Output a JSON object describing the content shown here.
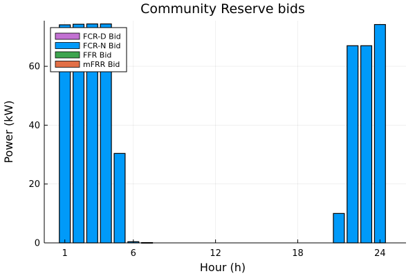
{
  "chart_data": {
    "type": "bar",
    "title": "Community Reserve bids",
    "xlabel": "Hour (h)",
    "ylabel": "Power (kW)",
    "x": [
      1,
      2,
      3,
      4,
      5,
      6,
      7,
      8,
      9,
      10,
      11,
      12,
      13,
      14,
      15,
      16,
      17,
      18,
      19,
      20,
      21,
      22,
      23,
      24
    ],
    "xticks": [
      1,
      6,
      12,
      18,
      24
    ],
    "yticks": [
      0,
      20,
      40,
      60
    ],
    "xlim": [
      -0.5,
      25.9
    ],
    "ylim": [
      0,
      75.5
    ],
    "grid": true,
    "legend_position": "top-left",
    "stacked": true,
    "series": [
      {
        "name": "FCR-D Bid",
        "color": "#C271D2",
        "values": [
          0,
          0,
          0,
          0,
          0,
          0,
          0,
          0,
          0,
          0,
          0,
          0,
          0,
          0,
          0,
          0,
          0,
          0,
          0,
          0,
          0,
          0,
          0,
          0
        ]
      },
      {
        "name": "FCR-N Bid",
        "color": "#009AF9",
        "values": [
          74.1,
          74.3,
          74.4,
          74.4,
          30.4,
          0.4,
          0.1,
          0,
          0,
          0,
          0,
          0,
          0,
          0,
          0,
          0,
          0,
          0,
          0,
          0,
          10,
          67,
          67,
          74.2
        ]
      },
      {
        "name": "FFR Bid",
        "color": "#3DA44E",
        "values": [
          0,
          0,
          0,
          0,
          0,
          0,
          0,
          0,
          0,
          0,
          0,
          0,
          0,
          0,
          0,
          0,
          0,
          0,
          0,
          0,
          0,
          0,
          0,
          0
        ]
      },
      {
        "name": "mFRR Bid",
        "color": "#E26F46",
        "values": [
          0,
          0,
          0,
          0,
          0,
          0,
          0,
          0,
          0,
          0,
          0,
          0,
          0,
          0,
          0,
          0,
          0,
          0,
          0,
          0,
          0,
          0,
          0,
          0
        ]
      }
    ]
  }
}
